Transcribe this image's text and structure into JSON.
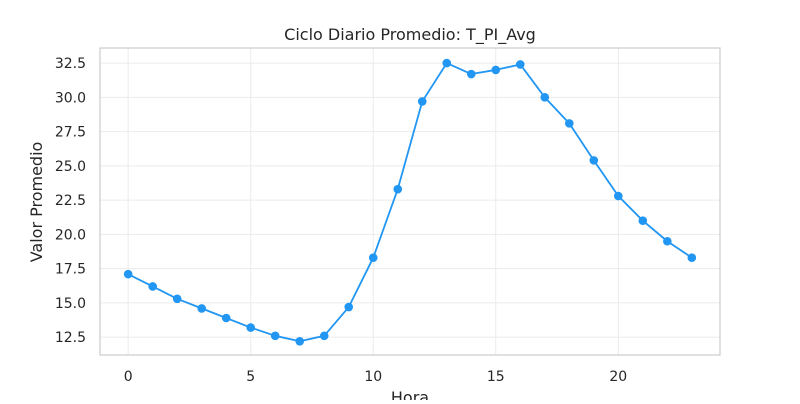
{
  "chart_data": {
    "type": "line",
    "title": "Ciclo Diario Promedio: T_PI_Avg",
    "xlabel": "Hora",
    "ylabel": "Valor Promedio",
    "x": [
      0,
      1,
      2,
      3,
      4,
      5,
      6,
      7,
      8,
      9,
      10,
      11,
      12,
      13,
      14,
      15,
      16,
      17,
      18,
      19,
      20,
      21,
      22,
      23
    ],
    "series": [
      {
        "values": [
          17.1,
          16.2,
          15.3,
          14.6,
          13.9,
          13.2,
          12.6,
          12.2,
          12.6,
          14.7,
          18.3,
          23.3,
          29.7,
          32.5,
          31.7,
          32.0,
          32.4,
          30.0,
          28.1,
          25.4,
          22.8,
          21.0,
          19.5,
          18.3
        ],
        "color": "#2196f3"
      }
    ],
    "xlim": [
      -1.15,
      24.15
    ],
    "ylim": [
      11.2,
      33.6
    ],
    "xticks": [
      0,
      5,
      10,
      15,
      20
    ],
    "xtick_labels": [
      "0",
      "5",
      "10",
      "15",
      "20"
    ],
    "yticks": [
      12.5,
      15.0,
      17.5,
      20.0,
      22.5,
      25.0,
      27.5,
      30.0,
      32.5
    ],
    "ytick_labels": [
      "12.5",
      "15.0",
      "17.5",
      "20.0",
      "22.5",
      "25.0",
      "27.5",
      "30.0",
      "32.5"
    ],
    "grid": true,
    "legend": false
  }
}
